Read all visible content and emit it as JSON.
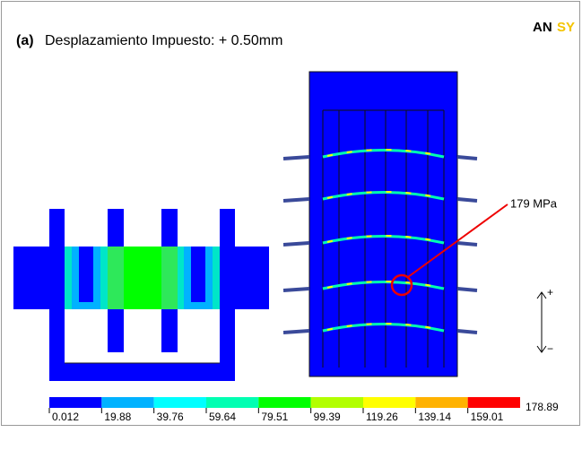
{
  "header": {
    "label": "(a)",
    "title": "Desplazamiento Impuesto: + 0.50mm"
  },
  "logo": {
    "dark": "AN",
    "light": "SY"
  },
  "annotation": "179 MPa",
  "direction": {
    "plus": "+",
    "minus": "−"
  },
  "legend": {
    "labels": [
      "0.012",
      "19.88",
      "39.76",
      "59.64",
      "79.51",
      "99.39",
      "119.26",
      "139.14",
      "159.01",
      "178.89"
    ],
    "colors": [
      "#0000FF",
      "#00B2FF",
      "#00FFFF",
      "#00FFB2",
      "#00FF00",
      "#B2FF00",
      "#FFFF00",
      "#FFB200",
      "#FF0000"
    ]
  }
}
